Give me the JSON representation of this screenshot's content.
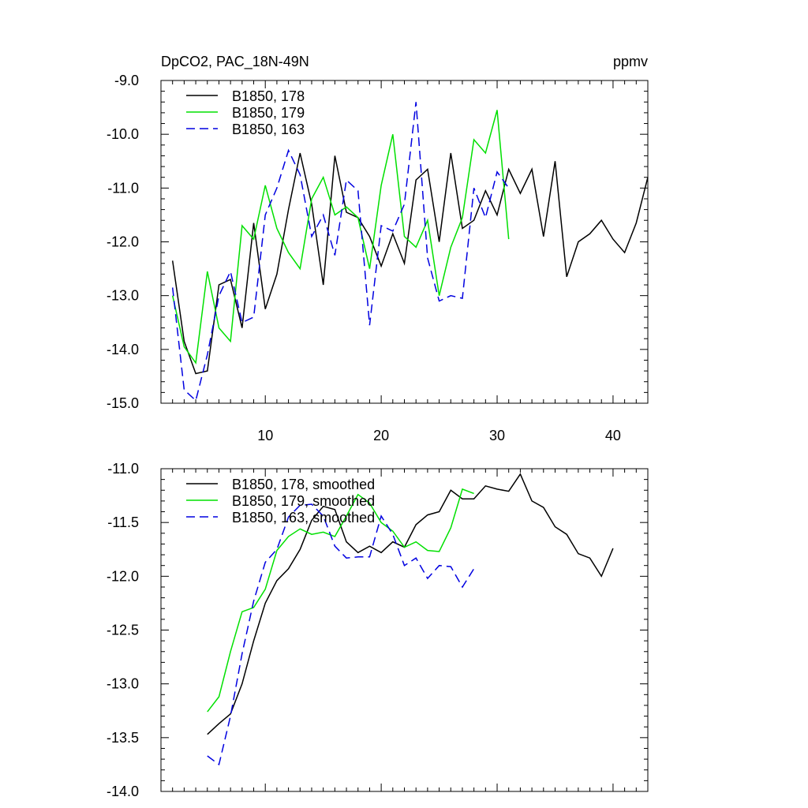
{
  "chart_data": [
    {
      "type": "line",
      "title": "DpCO2, PAC_18N-49N",
      "units": "ppmv",
      "xlim": [
        1,
        43
      ],
      "ylim": [
        -15.0,
        -9.0
      ],
      "xticks": [
        10,
        20,
        30,
        40
      ],
      "yticks": [
        "-9.0",
        "-10.0",
        "-11.0",
        "-12.0",
        "-13.0",
        "-14.0",
        "-15.0"
      ],
      "legend_position": "top-left",
      "series": [
        {
          "name": "B1850, 178",
          "color": "#000000",
          "dash": "solid",
          "x": [
            2,
            3,
            4,
            5,
            6,
            7,
            8,
            9,
            10,
            11,
            12,
            13,
            14,
            15,
            16,
            17,
            18,
            19,
            20,
            21,
            22,
            23,
            24,
            25,
            26,
            27,
            28,
            29,
            30,
            31,
            32,
            33,
            34,
            35,
            36,
            37,
            38,
            39,
            40,
            41,
            42,
            43
          ],
          "values": [
            -12.35,
            -13.85,
            -14.45,
            -14.4,
            -12.8,
            -12.7,
            -13.6,
            -11.65,
            -13.25,
            -12.6,
            -11.4,
            -10.35,
            -11.3,
            -12.8,
            -10.4,
            -11.45,
            -11.55,
            -11.9,
            -12.45,
            -11.85,
            -12.4,
            -10.85,
            -10.65,
            -12.0,
            -10.35,
            -11.75,
            -11.6,
            -11.05,
            -11.5,
            -10.65,
            -11.1,
            -10.65,
            -11.9,
            -10.5,
            -12.65,
            -12.0,
            -11.85,
            -11.6,
            -11.95,
            -12.2,
            -11.65,
            -10.8
          ]
        },
        {
          "name": "B1850, 179",
          "color": "#00e000",
          "dash": "solid",
          "x": [
            2,
            3,
            4,
            5,
            6,
            7,
            8,
            9,
            10,
            11,
            12,
            13,
            14,
            15,
            16,
            17,
            18,
            19,
            20,
            21,
            22,
            23,
            24,
            25,
            26,
            27,
            28,
            29,
            30,
            31
          ],
          "values": [
            -13.0,
            -13.95,
            -14.25,
            -12.55,
            -13.6,
            -13.85,
            -11.7,
            -11.95,
            -10.95,
            -11.75,
            -12.2,
            -12.5,
            -11.2,
            -10.8,
            -11.5,
            -11.35,
            -11.55,
            -12.5,
            -10.95,
            -10.0,
            -11.9,
            -12.1,
            -11.6,
            -13.0,
            -12.1,
            -11.55,
            -10.1,
            -10.35,
            -9.55,
            -11.95
          ]
        },
        {
          "name": "B1850, 163",
          "color": "#0000e0",
          "dash": "dashed",
          "x": [
            2,
            3,
            4,
            5,
            6,
            7,
            8,
            9,
            10,
            11,
            12,
            13,
            14,
            15,
            16,
            17,
            18,
            19,
            20,
            21,
            22,
            23,
            24,
            25,
            26,
            27,
            28,
            29,
            30,
            31
          ],
          "values": [
            -12.85,
            -14.75,
            -14.95,
            -14.1,
            -13.0,
            -12.55,
            -13.5,
            -13.4,
            -11.5,
            -11.0,
            -10.3,
            -10.75,
            -11.9,
            -11.5,
            -12.25,
            -10.85,
            -11.05,
            -13.55,
            -11.7,
            -11.8,
            -11.3,
            -9.4,
            -12.3,
            -13.1,
            -13.0,
            -13.05,
            -11.0,
            -11.55,
            -10.7,
            -11.0
          ]
        }
      ]
    },
    {
      "type": "line",
      "xlim": [
        1,
        43
      ],
      "ylim": [
        -14.0,
        -11.0
      ],
      "xticks": [
        10,
        20,
        30,
        40
      ],
      "yticks": [
        "-11.0",
        "-11.5",
        "-12.0",
        "-12.5",
        "-13.0",
        "-13.5",
        "-14.0"
      ],
      "legend_position": "top-left",
      "series": [
        {
          "name": "B1850, 178, smoothed",
          "color": "#000000",
          "dash": "solid",
          "x": [
            5,
            6,
            7,
            8,
            9,
            10,
            11,
            12,
            13,
            14,
            15,
            16,
            17,
            18,
            19,
            20,
            21,
            22,
            23,
            24,
            25,
            26,
            27,
            28,
            29,
            30,
            31,
            32,
            33,
            34,
            35,
            36,
            37,
            38,
            39,
            40
          ],
          "values": [
            -13.47,
            -13.37,
            -13.28,
            -13.0,
            -12.6,
            -12.25,
            -12.04,
            -11.93,
            -11.75,
            -11.48,
            -11.35,
            -11.38,
            -11.68,
            -11.78,
            -11.72,
            -11.78,
            -11.68,
            -11.73,
            -11.52,
            -11.43,
            -11.4,
            -11.2,
            -11.28,
            -11.28,
            -11.16,
            -11.19,
            -11.21,
            -11.05,
            -11.3,
            -11.36,
            -11.54,
            -11.61,
            -11.79,
            -11.83,
            -12.0,
            -11.74
          ]
        },
        {
          "name": "B1850, 179, smoothed",
          "color": "#00e000",
          "dash": "solid",
          "x": [
            5,
            6,
            7,
            8,
            9,
            10,
            11,
            12,
            13,
            14,
            15,
            16,
            17,
            18,
            19,
            20,
            21,
            22,
            23,
            24,
            25,
            26,
            27,
            28
          ],
          "values": [
            -13.26,
            -13.12,
            -12.7,
            -12.33,
            -12.29,
            -12.12,
            -11.76,
            -11.63,
            -11.56,
            -11.61,
            -11.59,
            -11.63,
            -11.44,
            -11.24,
            -11.32,
            -11.5,
            -11.58,
            -11.73,
            -11.68,
            -11.76,
            -11.77,
            -11.55,
            -11.19,
            -11.23
          ]
        },
        {
          "name": "B1850, 163, smoothed",
          "color": "#0000e0",
          "dash": "dashed",
          "x": [
            5,
            6,
            7,
            8,
            9,
            10,
            11,
            12,
            13,
            14,
            15,
            16,
            17,
            18,
            19,
            20,
            21,
            22,
            23,
            24,
            25,
            26,
            27,
            28
          ],
          "values": [
            -13.67,
            -13.75,
            -13.3,
            -12.72,
            -12.23,
            -11.87,
            -11.75,
            -11.45,
            -11.34,
            -11.33,
            -11.44,
            -11.72,
            -11.83,
            -11.82,
            -11.82,
            -11.44,
            -11.61,
            -11.9,
            -11.83,
            -12.02,
            -11.9,
            -11.91,
            -12.1,
            -11.93
          ]
        }
      ]
    }
  ]
}
